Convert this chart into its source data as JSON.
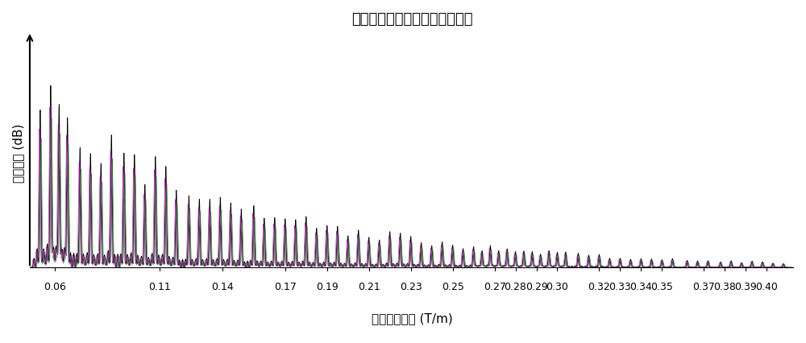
{
  "title": "扩散梯度强度逐渐增加的阵列谱",
  "xlabel": "扩散梯度强度 (T/m)",
  "ylabel": "信号强度 (dB)",
  "x_min": 0.048,
  "x_max": 0.413,
  "x_ticks": [
    0.06,
    0.11,
    0.14,
    0.17,
    0.19,
    0.21,
    0.23,
    0.25,
    0.27,
    0.28,
    0.29,
    0.3,
    0.32,
    0.33,
    0.34,
    0.35,
    0.37,
    0.38,
    0.39,
    0.4
  ],
  "background_color": "#ffffff",
  "title_fontsize": 13,
  "label_fontsize": 11,
  "tick_fontsize": 9,
  "seed": 42,
  "spectrum_colors": [
    "#000000",
    "#007700",
    "#bb00bb",
    "#444444"
  ],
  "offsets": [
    0.0,
    0.0004,
    -0.0004,
    0.0
  ],
  "scales": [
    1.0,
    0.82,
    0.88,
    0.6
  ]
}
